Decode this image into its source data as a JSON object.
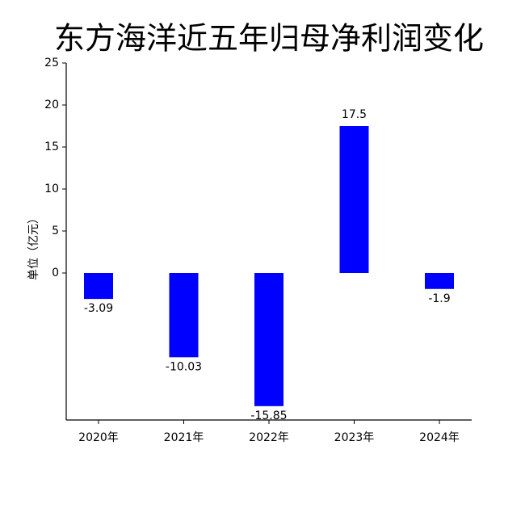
{
  "chart_data": {
    "type": "bar",
    "title": "东方海洋近五年归母净利润变化",
    "y_label": "单位（亿元）",
    "categories": [
      "2020年",
      "2021年",
      "2022年",
      "2023年",
      "2024年"
    ],
    "values": [
      -3.09,
      -10.03,
      -15.85,
      17.5,
      -1.9
    ],
    "color": "#0000ff",
    "ylim": [
      -17.5,
      25
    ],
    "yticks": [
      0,
      5,
      10,
      15,
      20,
      25
    ],
    "grid": false
  }
}
